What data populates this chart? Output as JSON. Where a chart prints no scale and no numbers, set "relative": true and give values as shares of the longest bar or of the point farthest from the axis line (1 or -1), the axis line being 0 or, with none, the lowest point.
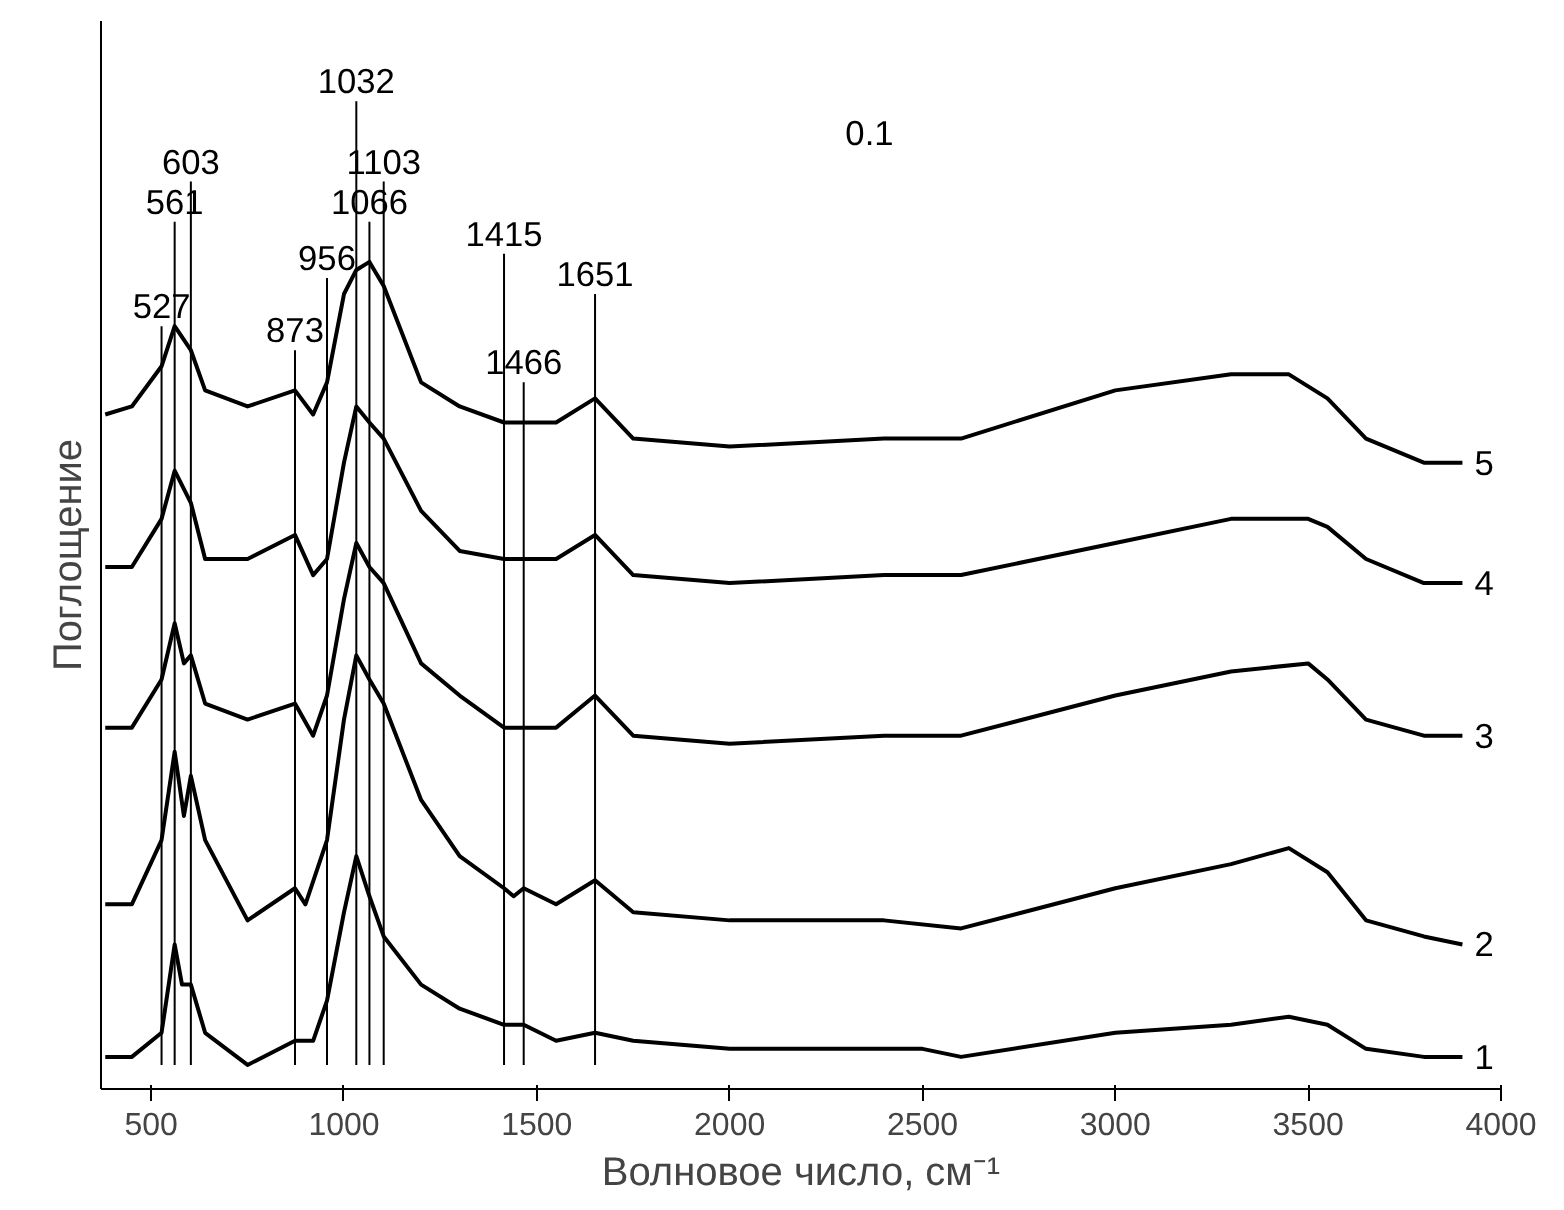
{
  "chart_data": {
    "type": "line",
    "relative": true,
    "xlabel": "Волновое число, см⁻¹",
    "ylabel": "Поглощение",
    "xlim": [
      370,
      4000
    ],
    "xticks": [
      500,
      1000,
      1500,
      2000,
      2500,
      3000,
      3500,
      4000
    ],
    "tick_labels": "x",
    "grid": false,
    "marker": "none",
    "line_style": "solid",
    "annotations": [
      "0.1"
    ],
    "ref_lines": [
      {
        "axis": "x",
        "value": 527,
        "label": "527"
      },
      {
        "axis": "x",
        "value": 561,
        "label": "561"
      },
      {
        "axis": "x",
        "value": 603,
        "label": "603"
      },
      {
        "axis": "x",
        "value": 873,
        "label": "873"
      },
      {
        "axis": "x",
        "value": 956,
        "label": "956"
      },
      {
        "axis": "x",
        "value": 1032,
        "label": "1032"
      },
      {
        "axis": "x",
        "value": 1066,
        "label": "1066"
      },
      {
        "axis": "x",
        "value": 1103,
        "label": "1103"
      },
      {
        "axis": "x",
        "value": 1415,
        "label": "1415"
      },
      {
        "axis": "x",
        "value": 1466,
        "label": "1466"
      },
      {
        "axis": "x",
        "value": 1651,
        "label": "1651"
      }
    ],
    "series": [
      {
        "name": "1",
        "color": "#000000",
        "x": [
          381,
          450,
          527,
          561,
          580,
          603,
          640,
          750,
          873,
          920,
          956,
          1000,
          1032,
          1066,
          1103,
          1200,
          1300,
          1415,
          1466,
          1550,
          1651,
          1750,
          2000,
          2500,
          2600,
          3000,
          3300,
          3450,
          3550,
          3650,
          3800,
          3900
        ],
        "values": [
          0.01,
          0.01,
          0.04,
          0.15,
          0.1,
          0.1,
          0.04,
          0.0,
          0.03,
          0.03,
          0.08,
          0.19,
          0.26,
          0.21,
          0.16,
          0.1,
          0.07,
          0.05,
          0.05,
          0.03,
          0.04,
          0.03,
          0.02,
          0.02,
          0.01,
          0.04,
          0.05,
          0.06,
          0.05,
          0.02,
          0.01,
          0.01
        ]
      },
      {
        "name": "2",
        "color": "#000000",
        "x": [
          381,
          450,
          527,
          561,
          585,
          603,
          640,
          750,
          873,
          900,
          956,
          1000,
          1032,
          1066,
          1103,
          1200,
          1300,
          1415,
          1440,
          1466,
          1550,
          1651,
          1750,
          2000,
          2400,
          2600,
          3000,
          3300,
          3450,
          3550,
          3650,
          3800,
          3900
        ],
        "values": [
          0.2,
          0.2,
          0.28,
          0.39,
          0.31,
          0.36,
          0.28,
          0.18,
          0.22,
          0.2,
          0.28,
          0.43,
          0.51,
          0.48,
          0.45,
          0.33,
          0.26,
          0.22,
          0.21,
          0.22,
          0.2,
          0.23,
          0.19,
          0.18,
          0.18,
          0.17,
          0.22,
          0.25,
          0.27,
          0.24,
          0.18,
          0.16,
          0.15
        ]
      },
      {
        "name": "3",
        "color": "#000000",
        "x": [
          381,
          450,
          527,
          561,
          585,
          603,
          640,
          750,
          873,
          920,
          956,
          1000,
          1032,
          1066,
          1103,
          1200,
          1300,
          1415,
          1550,
          1651,
          1750,
          2000,
          2400,
          2600,
          3000,
          3300,
          3500,
          3550,
          3650,
          3800,
          3900
        ],
        "values": [
          0.42,
          0.42,
          0.48,
          0.55,
          0.5,
          0.51,
          0.45,
          0.43,
          0.45,
          0.41,
          0.46,
          0.58,
          0.65,
          0.62,
          0.6,
          0.5,
          0.46,
          0.42,
          0.42,
          0.46,
          0.41,
          0.4,
          0.41,
          0.41,
          0.46,
          0.49,
          0.5,
          0.48,
          0.43,
          0.41,
          0.41
        ]
      },
      {
        "name": "4",
        "color": "#000000",
        "x": [
          381,
          450,
          527,
          561,
          603,
          640,
          750,
          873,
          920,
          956,
          1000,
          1032,
          1066,
          1103,
          1200,
          1300,
          1415,
          1550,
          1651,
          1750,
          2000,
          2400,
          2600,
          3000,
          3300,
          3500,
          3550,
          3650,
          3800,
          3900
        ],
        "values": [
          0.62,
          0.62,
          0.68,
          0.74,
          0.7,
          0.63,
          0.63,
          0.66,
          0.61,
          0.63,
          0.75,
          0.82,
          0.8,
          0.78,
          0.69,
          0.64,
          0.63,
          0.63,
          0.66,
          0.61,
          0.6,
          0.61,
          0.61,
          0.65,
          0.68,
          0.68,
          0.67,
          0.63,
          0.6,
          0.6
        ]
      },
      {
        "name": "5",
        "color": "#000000",
        "x": [
          381,
          450,
          527,
          561,
          603,
          640,
          750,
          873,
          920,
          956,
          1000,
          1032,
          1066,
          1103,
          1200,
          1300,
          1415,
          1550,
          1651,
          1750,
          2000,
          2400,
          2600,
          3000,
          3300,
          3450,
          3550,
          3650,
          3800,
          3900
        ],
        "values": [
          0.81,
          0.82,
          0.87,
          0.92,
          0.89,
          0.84,
          0.82,
          0.84,
          0.81,
          0.85,
          0.96,
          0.99,
          1.0,
          0.97,
          0.85,
          0.82,
          0.8,
          0.8,
          0.83,
          0.78,
          0.77,
          0.78,
          0.78,
          0.84,
          0.86,
          0.86,
          0.83,
          0.78,
          0.75,
          0.75
        ]
      }
    ]
  }
}
